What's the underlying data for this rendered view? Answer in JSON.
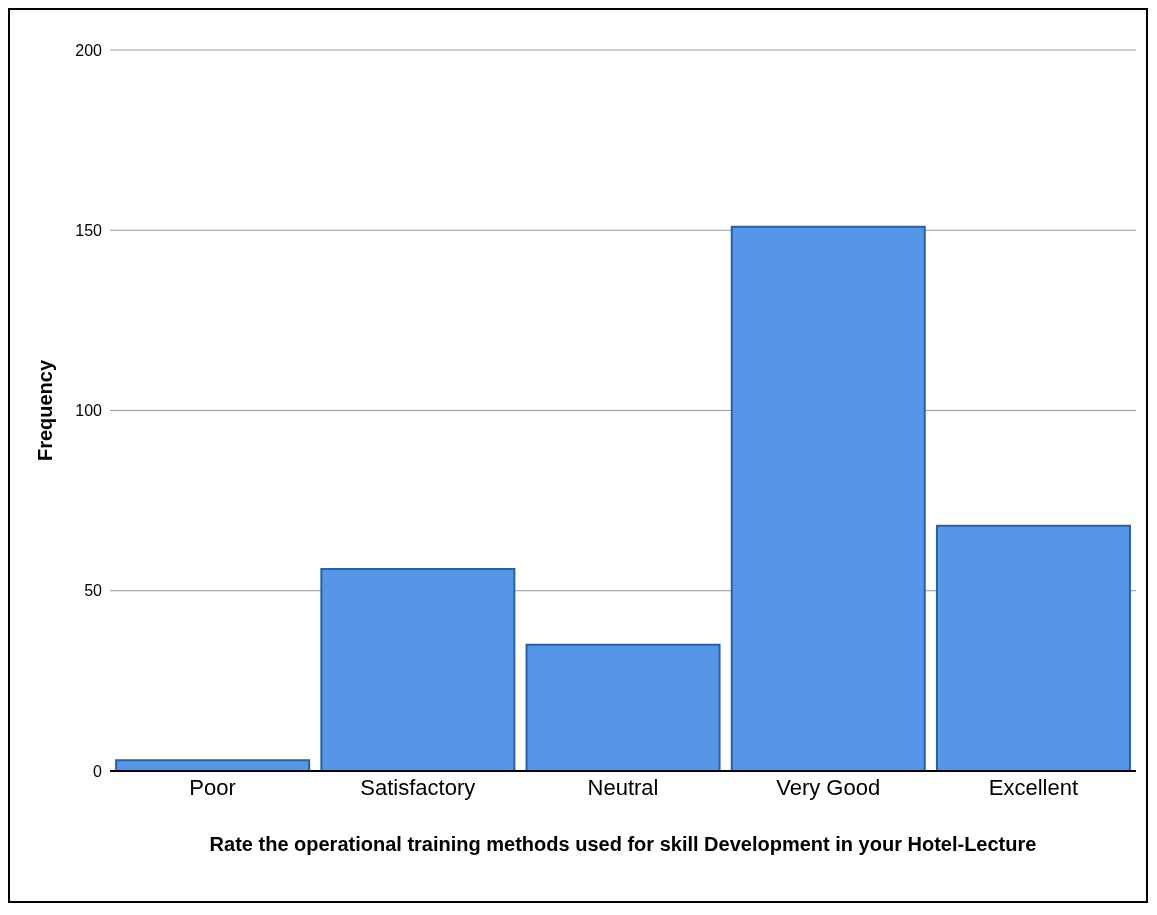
{
  "chart_data": {
    "type": "bar",
    "xlabel": "Rate the operational training methods used for skill Development in your Hotel-Lecture",
    "ylabel": "Frequency",
    "categories": [
      "Poor",
      "Satisfactory",
      "Neutral",
      "Very Good",
      "Excellent"
    ],
    "values": [
      3,
      56,
      35,
      151,
      68
    ],
    "color": "#5596e6",
    "ylim": [
      0,
      200
    ],
    "yticks": [
      0,
      50,
      100,
      150,
      200
    ],
    "grid": "y"
  }
}
